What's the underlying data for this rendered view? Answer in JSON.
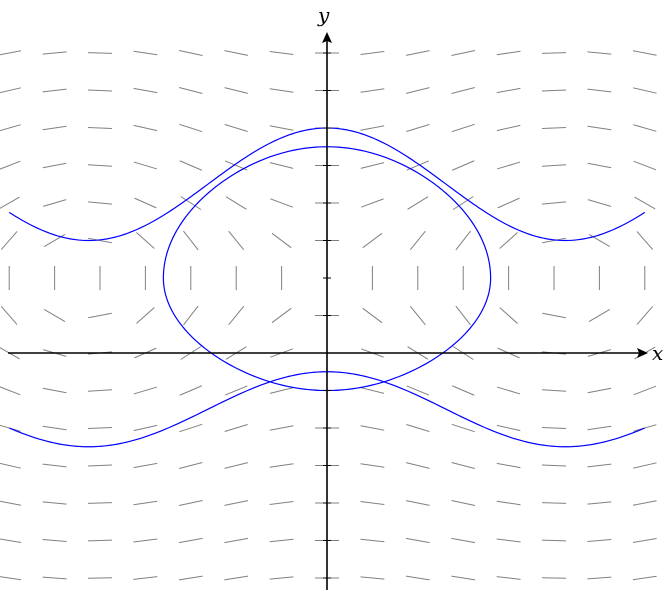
{
  "axes": {
    "x_label": "x",
    "y_label": "y",
    "color": "#000000"
  },
  "slope_field": {
    "color": "#808080",
    "x_positions": [
      -7,
      -6,
      -5,
      -4,
      -3,
      -2,
      -1,
      0,
      1,
      2,
      3,
      4,
      5,
      6,
      7
    ],
    "y_positions": [
      -6,
      -5,
      -4,
      -3,
      -2,
      -1,
      0,
      1,
      2,
      3,
      4,
      5,
      6,
      7,
      8
    ],
    "vertical_row_y": 2
  },
  "curves": {
    "color": "#0000ff",
    "closed_orbit": {
      "x_center": 0,
      "y_center": 2,
      "semi_x": 3.4,
      "semi_top": 3.5,
      "semi_bottom": 3.0
    },
    "upper_wave": {
      "x_min": -7,
      "x_max": 7,
      "y_at_min": 3.0,
      "y_at_max": 6.0,
      "period": 10.5
    },
    "lower_wave": {
      "x_min": -7,
      "x_max": 7,
      "y_at_min": -2.5,
      "y_at_max": -0.5,
      "period": 10.5
    }
  }
}
